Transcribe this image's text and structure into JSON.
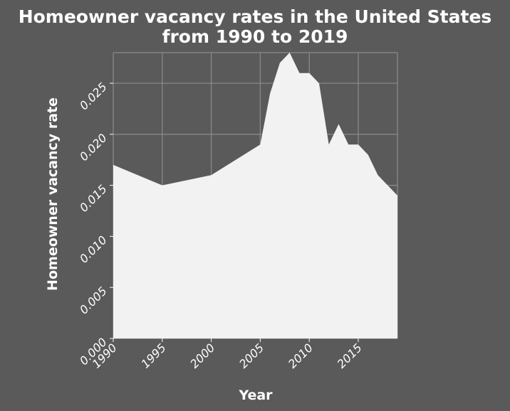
{
  "chart_data": {
    "type": "area",
    "title_lines": [
      "Homeowner vacancy rates in the United States",
      "from 1990 to 2019"
    ],
    "xlabel": "Year",
    "ylabel": "Homeowner vacancy rate",
    "xlim": [
      1990,
      2019
    ],
    "ylim": [
      0,
      0.028
    ],
    "x_ticks": [
      1990,
      1995,
      2000,
      2005,
      2010,
      2015
    ],
    "x_tick_labels": [
      "1990",
      "1995",
      "2000",
      "2005",
      "2010",
      "2015"
    ],
    "y_ticks": [
      0,
      0.005,
      0.01,
      0.015,
      0.02,
      0.025
    ],
    "y_tick_labels": [
      "0.000",
      "0.005",
      "0.010",
      "0.015",
      "0.020",
      "0.025"
    ],
    "grid": true,
    "legend": "none",
    "x": [
      1990,
      1995,
      2000,
      2005,
      2006,
      2007,
      2008,
      2009,
      2010,
      2011,
      2012,
      2013,
      2014,
      2015,
      2016,
      2017,
      2018,
      2019
    ],
    "series": [
      {
        "values": [
          0.017,
          0.015,
          0.016,
          0.019,
          0.024,
          0.027,
          0.028,
          0.026,
          0.026,
          0.025,
          0.019,
          0.021,
          0.019,
          0.019,
          0.018,
          0.016,
          0.015,
          0.014
        ]
      }
    ],
    "colors": {
      "background": "#5a5a5a",
      "area_fill": "#f2f2f2",
      "grid": "#8c8c8c",
      "text": "#ffffff"
    }
  }
}
